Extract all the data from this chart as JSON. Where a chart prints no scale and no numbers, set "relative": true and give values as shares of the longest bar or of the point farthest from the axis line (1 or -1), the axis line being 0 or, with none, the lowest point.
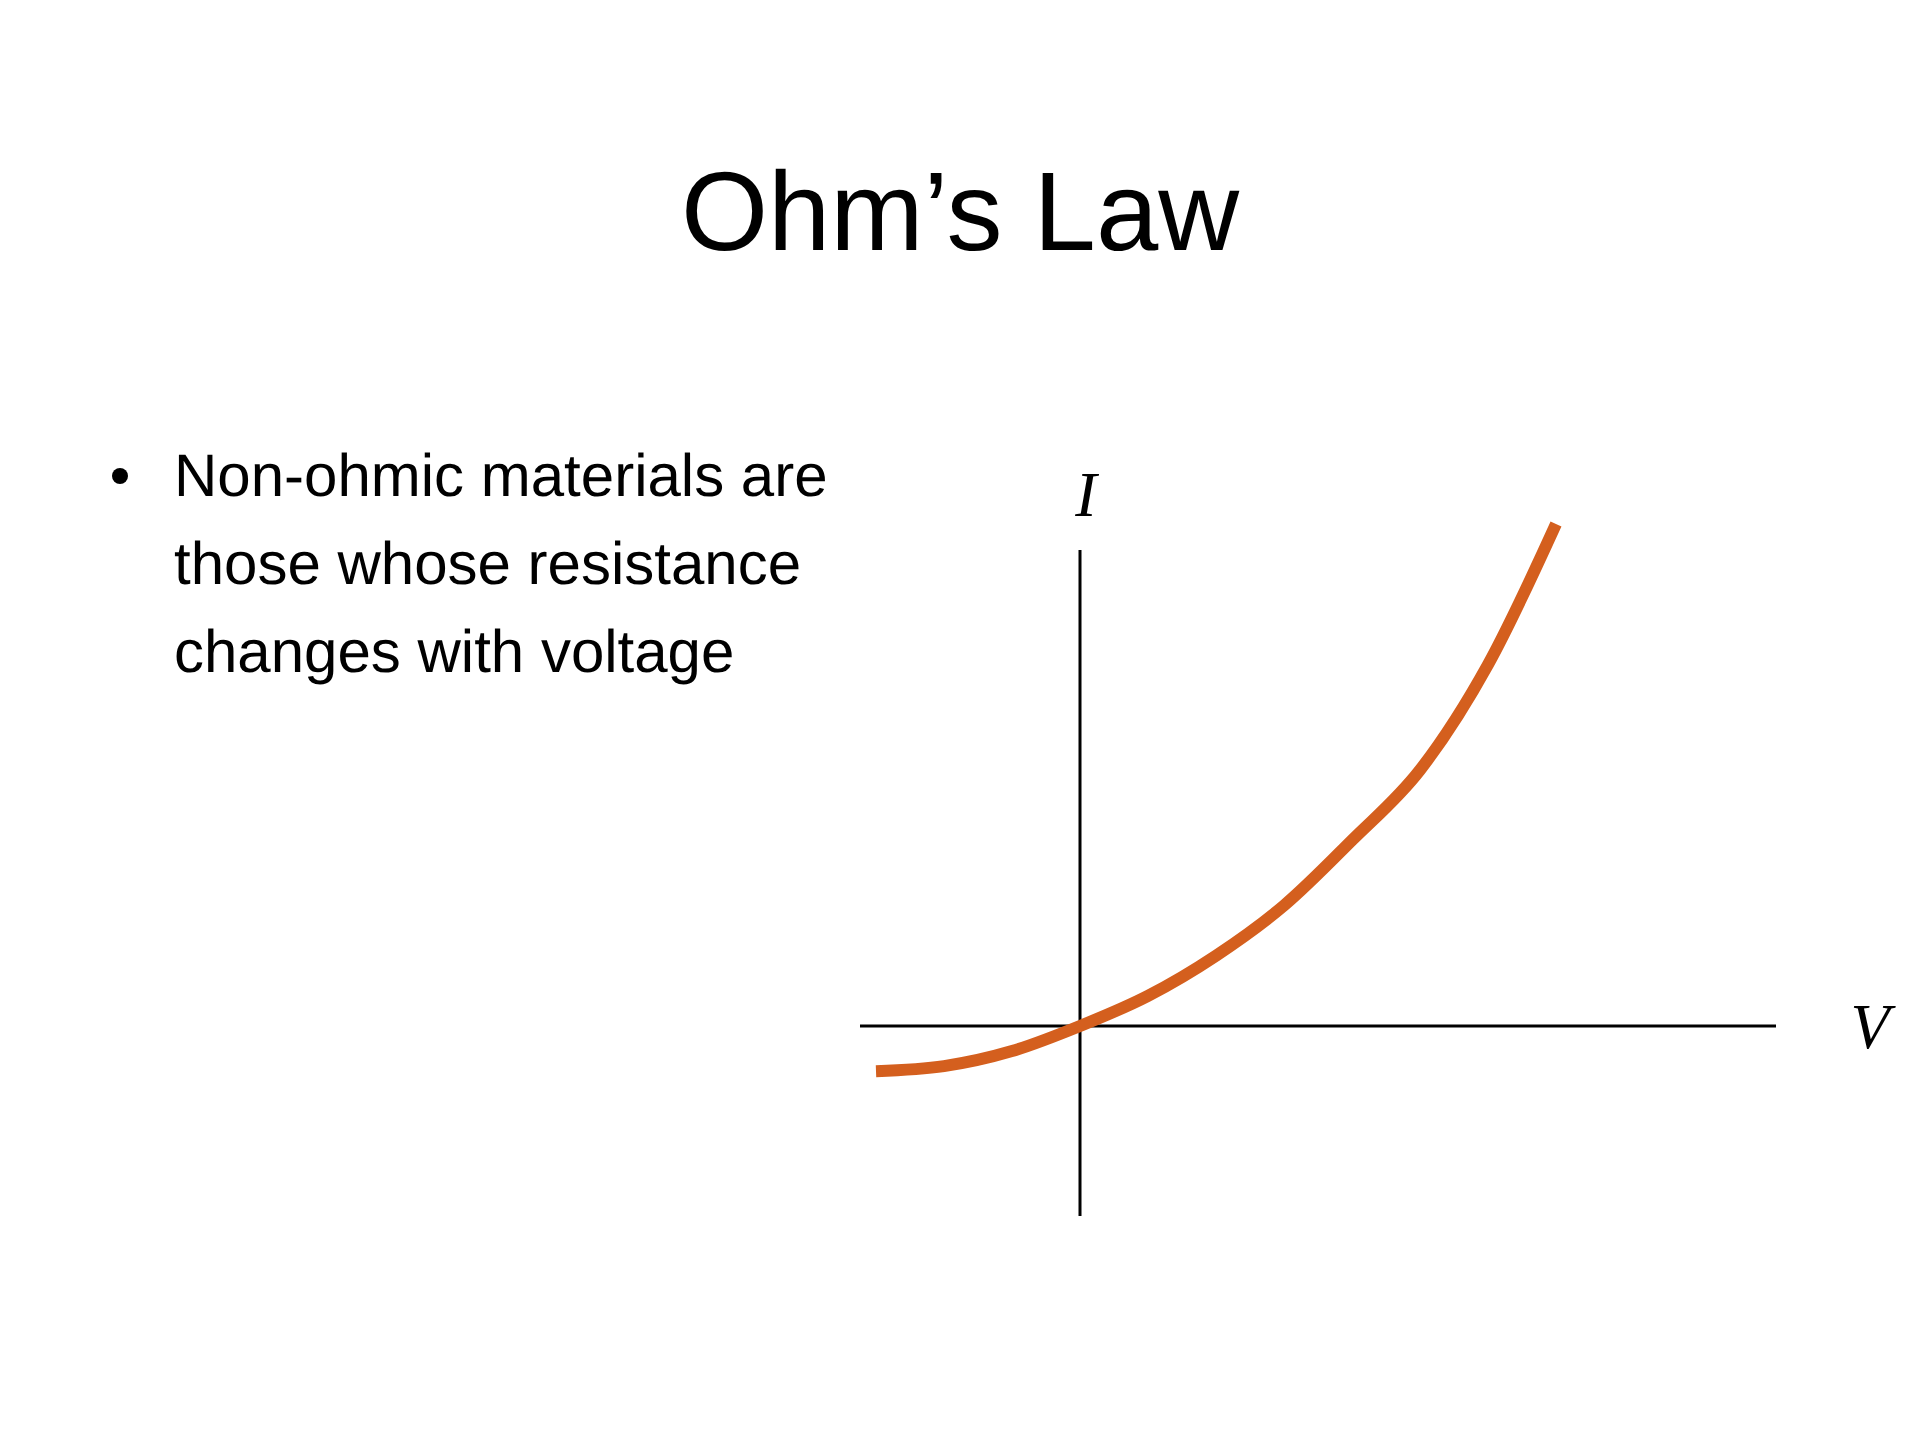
{
  "chart_data": {
    "type": "line",
    "title": "Ohm’s Law",
    "annotations": [
      "Non-ohmic materials are those whose resistance changes with voltage"
    ],
    "xlabel": "V",
    "ylabel": "I",
    "relative": true,
    "categories": [
      null,
      null,
      null,
      null,
      null,
      null,
      null,
      null,
      null,
      null,
      null
    ],
    "series": [
      {
        "color": "#d45f1e",
        "values": [
          -0.09,
          -0.08,
          -0.05,
          0,
          0.06,
          0.14,
          0.24,
          0.37,
          0.51,
          0.72,
          1
        ]
      }
    ],
    "marker": "none",
    "line_style": "solid"
  }
}
